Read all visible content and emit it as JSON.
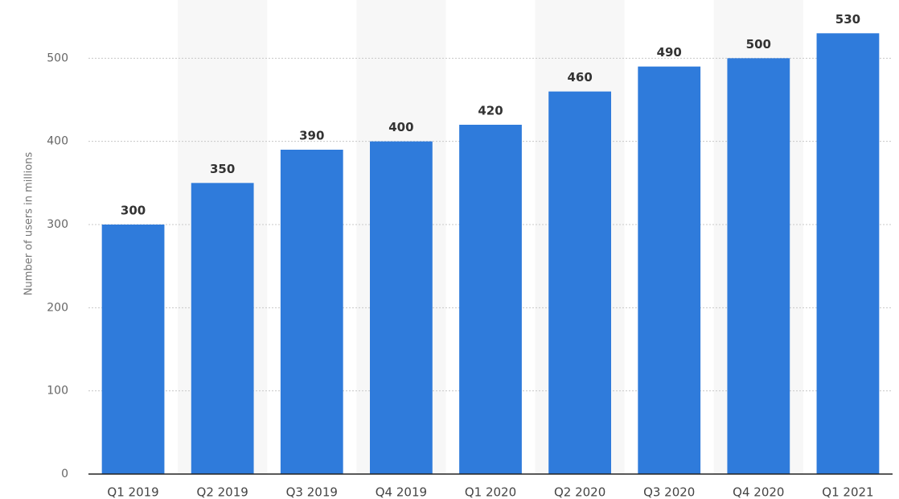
{
  "chart_data": {
    "type": "bar",
    "y_label": "Number of users in millions",
    "categories": [
      "Q1 2019",
      "Q2 2019",
      "Q3 2019",
      "Q4 2019",
      "Q1 2020",
      "Q2 2020",
      "Q3 2020",
      "Q4 2020",
      "Q1 2021"
    ],
    "values": [
      300,
      350,
      390,
      400,
      420,
      460,
      490,
      500,
      530
    ],
    "color": "#2f7bdb",
    "ylim": [
      0,
      570
    ],
    "yticks": [
      0,
      100,
      200,
      300,
      400,
      500
    ],
    "grid": true
  }
}
